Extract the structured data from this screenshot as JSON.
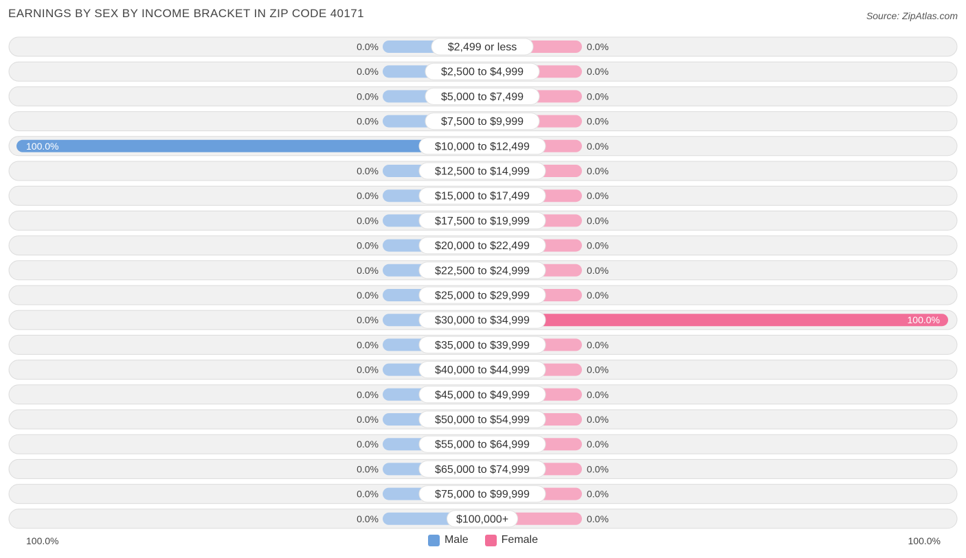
{
  "title": "EARNINGS BY SEX BY INCOME BRACKET IN ZIP CODE 40171",
  "source": "Source: ZipAtlas.com",
  "colors": {
    "male": "#6a9fdc",
    "male_light": "#aac8ec",
    "female": "#f26e98",
    "female_light": "#f6a8c2",
    "row_bg": "#f1f1f1",
    "row_border": "#dcdcdc"
  },
  "legend": {
    "male": "Male",
    "female": "Female"
  },
  "axis": {
    "left_label": "100.0%",
    "right_label": "100.0%"
  },
  "chart_data": {
    "type": "bar",
    "orientation": "horizontal-diverging",
    "title": "EARNINGS BY SEX BY INCOME BRACKET IN ZIP CODE 40171",
    "xlim": [
      -100,
      100
    ],
    "categories": [
      "$2,499 or less",
      "$2,500 to $4,999",
      "$5,000 to $7,499",
      "$7,500 to $9,999",
      "$10,000 to $12,499",
      "$12,500 to $14,999",
      "$15,000 to $17,499",
      "$17,500 to $19,999",
      "$20,000 to $22,499",
      "$22,500 to $24,999",
      "$25,000 to $29,999",
      "$30,000 to $34,999",
      "$35,000 to $39,999",
      "$40,000 to $44,999",
      "$45,000 to $49,999",
      "$50,000 to $54,999",
      "$55,000 to $64,999",
      "$65,000 to $74,999",
      "$75,000 to $99,999",
      "$100,000+"
    ],
    "series": [
      {
        "name": "Male",
        "values": [
          0,
          0,
          0,
          0,
          100,
          0,
          0,
          0,
          0,
          0,
          0,
          0,
          0,
          0,
          0,
          0,
          0,
          0,
          0,
          0
        ],
        "labels": [
          "0.0%",
          "0.0%",
          "0.0%",
          "0.0%",
          "100.0%",
          "0.0%",
          "0.0%",
          "0.0%",
          "0.0%",
          "0.0%",
          "0.0%",
          "0.0%",
          "0.0%",
          "0.0%",
          "0.0%",
          "0.0%",
          "0.0%",
          "0.0%",
          "0.0%",
          "0.0%"
        ]
      },
      {
        "name": "Female",
        "values": [
          0,
          0,
          0,
          0,
          0,
          0,
          0,
          0,
          0,
          0,
          0,
          100,
          0,
          0,
          0,
          0,
          0,
          0,
          0,
          0
        ],
        "labels": [
          "0.0%",
          "0.0%",
          "0.0%",
          "0.0%",
          "0.0%",
          "0.0%",
          "0.0%",
          "0.0%",
          "0.0%",
          "0.0%",
          "0.0%",
          "100.0%",
          "0.0%",
          "0.0%",
          "0.0%",
          "0.0%",
          "0.0%",
          "0.0%",
          "0.0%",
          "0.0%"
        ]
      }
    ],
    "legend_position": "bottom-center"
  }
}
